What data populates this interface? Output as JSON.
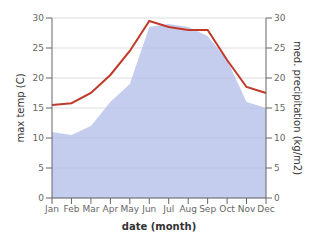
{
  "chart_data": {
    "type": "line",
    "x_label": "date (month)",
    "y_label": "max temp (C)",
    "y2_label": "med. precipitation (kg/m2)",
    "categories": [
      "Jan",
      "Feb",
      "Mar",
      "Apr",
      "May",
      "Jun",
      "Jul",
      "Aug",
      "Sep",
      "Oct",
      "Nov",
      "Dec"
    ],
    "series": [
      {
        "type": "line",
        "color": "#c0392b",
        "values": [
          15.5,
          15.8,
          17.5,
          20.5,
          24.5,
          29.5,
          28.5,
          28.0,
          28.0,
          23.0,
          18.5,
          17.5
        ]
      },
      {
        "type": "area",
        "axis": "y2",
        "color": "#b0bce8",
        "values": [
          11.0,
          10.5,
          12.0,
          16.0,
          19.0,
          28.5,
          29.0,
          28.5,
          27.0,
          23.0,
          16.0,
          15.0
        ]
      }
    ],
    "ylim": [
      0,
      30
    ],
    "yticks": [
      0,
      5,
      10,
      15,
      20,
      25,
      30
    ],
    "y2lim": [
      0,
      30
    ],
    "y2ticks": [
      0,
      5,
      10,
      15,
      20,
      25,
      30
    ],
    "grid": true
  }
}
